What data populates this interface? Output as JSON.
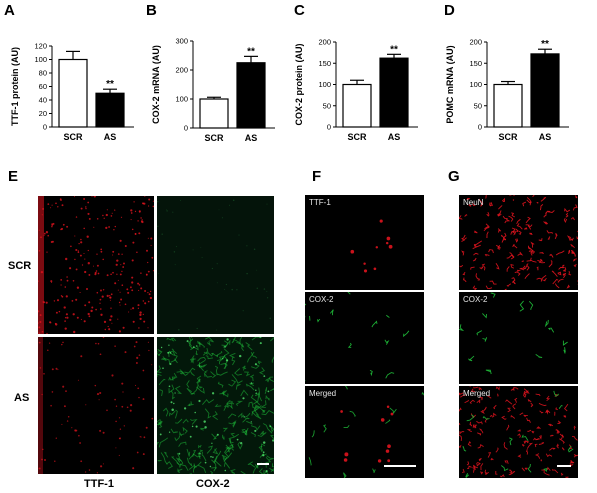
{
  "panel_letters": {
    "A": "A",
    "B": "B",
    "C": "C",
    "D": "D",
    "E": "E",
    "F": "F",
    "G": "G"
  },
  "colors": {
    "scr_bar": "#ffffff",
    "as_bar": "#000000",
    "red_stain": "#e0141e",
    "green_stain": "#1fbf3a"
  },
  "chart_data": [
    {
      "type": "bar",
      "ylabel": "TTF-1 protein (AU)",
      "categories": [
        "SCR",
        "AS"
      ],
      "values": [
        100,
        50
      ],
      "errors": [
        12,
        6
      ],
      "ylim": [
        0,
        120
      ],
      "yticks": [
        0,
        20,
        40,
        60,
        80,
        100,
        120
      ],
      "significance": [
        "",
        "**"
      ]
    },
    {
      "type": "bar",
      "ylabel": "COX-2 mRNA (AU)",
      "categories": [
        "SCR",
        "AS"
      ],
      "values": [
        100,
        225
      ],
      "errors": [
        6,
        22
      ],
      "ylim": [
        0,
        300
      ],
      "yticks": [
        0,
        100,
        200,
        300
      ],
      "significance": [
        "",
        "**"
      ]
    },
    {
      "type": "bar",
      "ylabel": "COX-2 protein (AU)",
      "categories": [
        "SCR",
        "AS"
      ],
      "values": [
        100,
        162
      ],
      "errors": [
        10,
        9
      ],
      "ylim": [
        0,
        200
      ],
      "yticks": [
        0,
        50,
        100,
        150,
        200
      ],
      "significance": [
        "",
        "**"
      ]
    },
    {
      "type": "bar",
      "ylabel": "POMC mRNA (AU)",
      "categories": [
        "SCR",
        "AS"
      ],
      "values": [
        100,
        172
      ],
      "errors": [
        7,
        11
      ],
      "ylim": [
        0,
        200
      ],
      "yticks": [
        0,
        50,
        100,
        150,
        200
      ],
      "significance": [
        "",
        "**"
      ]
    }
  ],
  "panel_e": {
    "row_labels": [
      "SCR",
      "AS"
    ],
    "col_labels": [
      "TTF-1",
      "COX-2"
    ]
  },
  "panel_f": {
    "labels": [
      "TTF-1",
      "COX-2",
      "Merged"
    ]
  },
  "panel_g": {
    "labels": [
      "NeuN",
      "COX-2",
      "Merged"
    ]
  }
}
